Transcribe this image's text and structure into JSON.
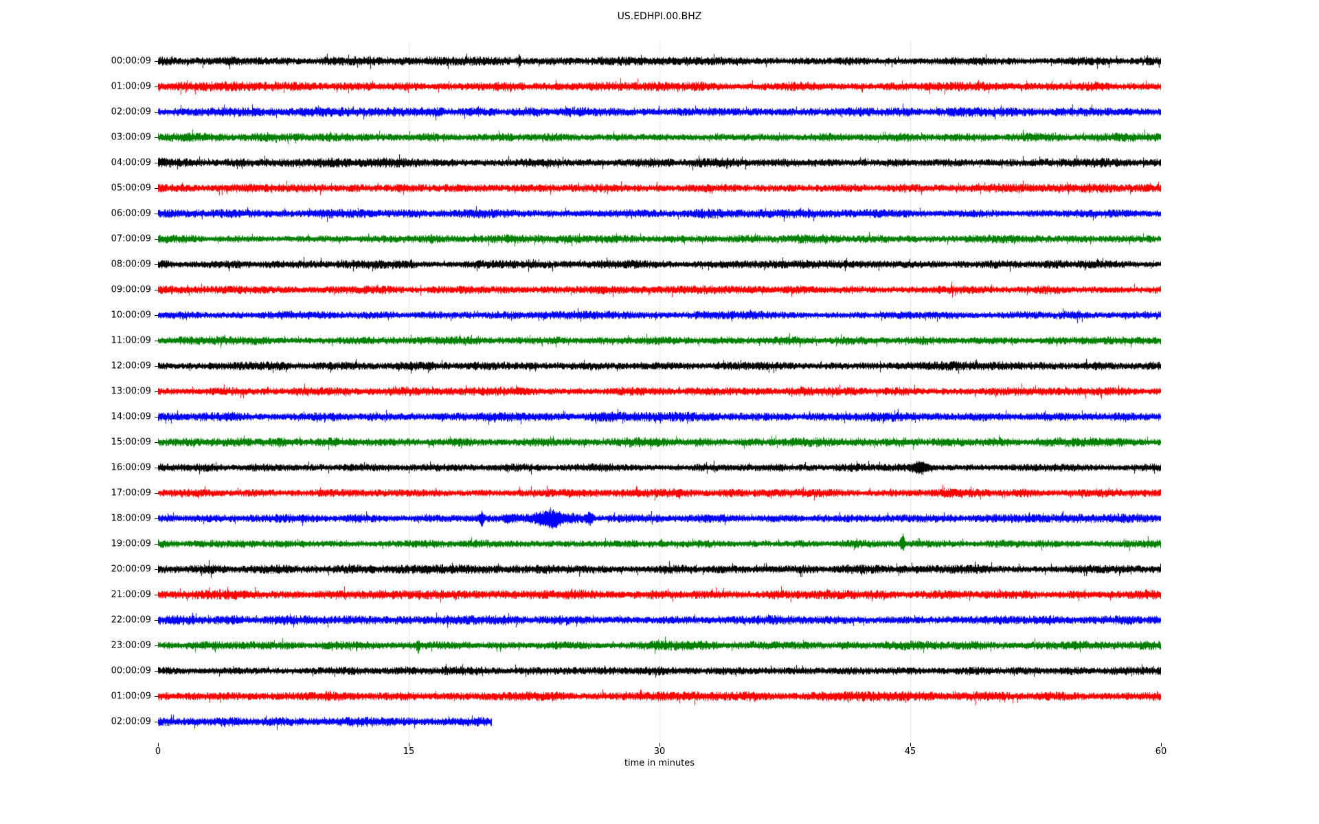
{
  "title": "US.EDHPI.00.BHZ",
  "chart_data": {
    "type": "line",
    "subtype": "helicorder-dayplot",
    "title": "US.EDHPI.00.BHZ",
    "xlabel": "time in minutes",
    "xlim": [
      0,
      60
    ],
    "x_ticks": [
      "0",
      "15",
      "30",
      "45",
      "60"
    ],
    "x_tick_values": [
      0,
      15,
      30,
      45,
      60
    ],
    "grid": {
      "vertical_at_minutes": [
        15,
        30,
        45
      ],
      "color": "#b0b0b0",
      "style": "dotted"
    },
    "color_cycle": [
      "#000000",
      "#ff0000",
      "#0000ff",
      "#008000"
    ],
    "axis_color": "#000000",
    "background_color": "#ffffff",
    "rows": 27,
    "traces": [
      {
        "label": "00:00:09",
        "start_min": 0,
        "end_min": 60,
        "noise_amp": 4.2,
        "events": [
          {
            "type": "spike",
            "t": 21.6,
            "up": 9,
            "down": 7,
            "sigma": 0.05
          }
        ]
      },
      {
        "label": "01:00:09",
        "start_min": 0,
        "end_min": 60,
        "noise_amp": 4.6,
        "events": []
      },
      {
        "label": "02:00:09",
        "start_min": 0,
        "end_min": 60,
        "noise_amp": 4.6,
        "events": []
      },
      {
        "label": "03:00:09",
        "start_min": 0,
        "end_min": 60,
        "noise_amp": 4.3,
        "events": []
      },
      {
        "label": "04:00:09",
        "start_min": 0,
        "end_min": 60,
        "noise_amp": 4.6,
        "events": []
      },
      {
        "label": "05:00:09",
        "start_min": 0,
        "end_min": 60,
        "noise_amp": 4.4,
        "events": []
      },
      {
        "label": "06:00:09",
        "start_min": 0,
        "end_min": 60,
        "noise_amp": 4.4,
        "events": []
      },
      {
        "label": "07:00:09",
        "start_min": 0,
        "end_min": 60,
        "noise_amp": 4.2,
        "events": []
      },
      {
        "label": "08:00:09",
        "start_min": 0,
        "end_min": 60,
        "noise_amp": 4.0,
        "events": []
      },
      {
        "label": "09:00:09",
        "start_min": 0,
        "end_min": 60,
        "noise_amp": 4.2,
        "events": []
      },
      {
        "label": "10:00:09",
        "start_min": 0,
        "end_min": 60,
        "noise_amp": 4.0,
        "events": []
      },
      {
        "label": "11:00:09",
        "start_min": 0,
        "end_min": 60,
        "noise_amp": 4.0,
        "events": []
      },
      {
        "label": "12:00:09",
        "start_min": 0,
        "end_min": 60,
        "noise_amp": 4.2,
        "events": []
      },
      {
        "label": "13:00:09",
        "start_min": 0,
        "end_min": 60,
        "noise_amp": 4.2,
        "events": []
      },
      {
        "label": "14:00:09",
        "start_min": 0,
        "end_min": 60,
        "noise_amp": 4.6,
        "events": []
      },
      {
        "label": "15:00:09",
        "start_min": 0,
        "end_min": 60,
        "noise_amp": 4.4,
        "events": []
      },
      {
        "label": "16:00:09",
        "start_min": 0,
        "end_min": 60,
        "noise_amp": 3.9,
        "events": [
          {
            "type": "spindle",
            "t": 45.6,
            "amp": 6.5,
            "sigma": 0.33
          }
        ]
      },
      {
        "label": "17:00:09",
        "start_min": 0,
        "end_min": 60,
        "noise_amp": 4.2,
        "events": []
      },
      {
        "label": "18:00:09",
        "start_min": 0,
        "end_min": 60,
        "noise_amp": 4.2,
        "events": [
          {
            "type": "spike",
            "t": 19.35,
            "up": 10,
            "down": 10,
            "sigma": 0.06
          },
          {
            "type": "spindle",
            "t": 21.0,
            "amp": 2.5,
            "sigma": 0.2
          },
          {
            "type": "burst",
            "start": 21.5,
            "peak": 23.6,
            "end": 24.9,
            "up": 13,
            "down": 15
          },
          {
            "type": "spindle",
            "t": 25.8,
            "amp": 6,
            "sigma": 0.12
          }
        ]
      },
      {
        "label": "19:00:09",
        "start_min": 0,
        "end_min": 60,
        "noise_amp": 4.0,
        "events": [
          {
            "type": "spike",
            "t": 30.1,
            "up": 4,
            "down": 2,
            "sigma": 0.05
          },
          {
            "type": "spike",
            "t": 44.52,
            "up": 13,
            "down": 8,
            "sigma": 0.09
          }
        ]
      },
      {
        "label": "20:00:09",
        "start_min": 0,
        "end_min": 60,
        "noise_amp": 4.4,
        "events": []
      },
      {
        "label": "21:00:09",
        "start_min": 0,
        "end_min": 60,
        "noise_amp": 4.6,
        "events": []
      },
      {
        "label": "22:00:09",
        "start_min": 0,
        "end_min": 60,
        "noise_amp": 4.6,
        "events": []
      },
      {
        "label": "23:00:09",
        "start_min": 0,
        "end_min": 60,
        "noise_amp": 4.4,
        "events": [
          {
            "type": "spike",
            "t": 15.55,
            "up": 3,
            "down": 9,
            "sigma": 0.06
          }
        ]
      },
      {
        "label": "00:00:09",
        "start_min": 0,
        "end_min": 60,
        "noise_amp": 4.2,
        "events": []
      },
      {
        "label": "01:00:09",
        "start_min": 0,
        "end_min": 60,
        "noise_amp": 4.6,
        "events": []
      },
      {
        "label": "02:00:09",
        "start_min": 0,
        "end_min": 19.9,
        "noise_amp": 5.0,
        "events": []
      }
    ]
  }
}
